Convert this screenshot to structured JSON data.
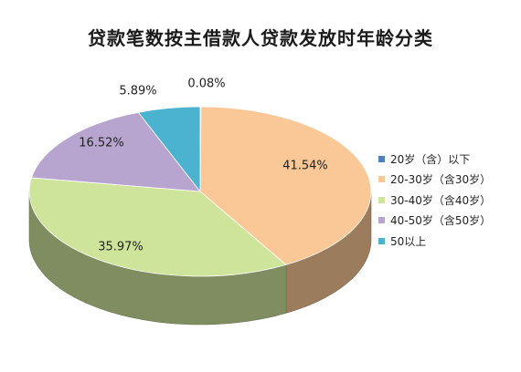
{
  "chart_data": {
    "type": "pie",
    "title": "贷款笔数按主借款人贷款发放时年龄分类",
    "categories": [
      "20岁（含）以下",
      "20-30岁（含30岁）",
      "30-40岁（含40岁）",
      "40-50岁（含50岁）",
      "50以上"
    ],
    "values": [
      0.08,
      41.54,
      35.97,
      16.52,
      5.89
    ],
    "data_labels": [
      "0.08%",
      "41.54%",
      "35.97%",
      "16.52%",
      "5.89%"
    ],
    "colors": [
      "#4f81bd",
      "#fac896",
      "#cfe49b",
      "#b7a5cf",
      "#4bb2cf"
    ],
    "style": "3d",
    "legend_position": "right"
  }
}
